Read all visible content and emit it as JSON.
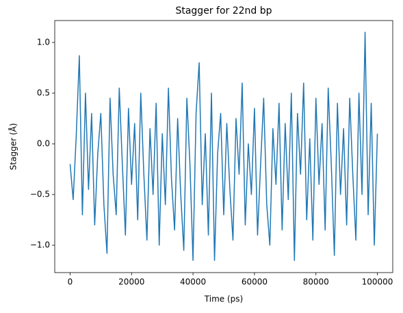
{
  "chart_data": {
    "type": "line",
    "title": "Stagger for 22nd bp",
    "xlabel": "Time (ps)",
    "ylabel": "Stagger (Å)",
    "x": [
      0,
      1000,
      2000,
      3000,
      4000,
      5000,
      6000,
      7000,
      8000,
      9000,
      10000,
      11000,
      12000,
      13000,
      14000,
      15000,
      16000,
      17000,
      18000,
      19000,
      20000,
      21000,
      22000,
      23000,
      24000,
      25000,
      26000,
      27000,
      28000,
      29000,
      30000,
      31000,
      32000,
      33000,
      34000,
      35000,
      36000,
      37000,
      38000,
      39000,
      40000,
      41000,
      42000,
      43000,
      44000,
      45000,
      46000,
      47000,
      48000,
      49000,
      50000,
      51000,
      52000,
      53000,
      54000,
      55000,
      56000,
      57000,
      58000,
      59000,
      60000,
      61000,
      62000,
      63000,
      64000,
      65000,
      66000,
      67000,
      68000,
      69000,
      70000,
      71000,
      72000,
      73000,
      74000,
      75000,
      76000,
      77000,
      78000,
      79000,
      80000,
      81000,
      82000,
      83000,
      84000,
      85000,
      86000,
      87000,
      88000,
      89000,
      90000,
      91000,
      92000,
      93000,
      94000,
      95000,
      96000,
      97000,
      98000,
      99000,
      100000
    ],
    "values": [
      -0.2,
      -0.55,
      0.08,
      0.87,
      -0.7,
      0.5,
      -0.45,
      0.3,
      -0.8,
      -0.1,
      0.3,
      -0.6,
      -1.08,
      0.45,
      -0.3,
      -0.7,
      0.55,
      -0.2,
      -0.9,
      0.35,
      -0.4,
      0.2,
      -0.75,
      0.5,
      -0.3,
      -0.95,
      0.15,
      -0.5,
      0.4,
      -1.0,
      0.1,
      -0.6,
      0.55,
      -0.35,
      -0.85,
      0.25,
      -0.5,
      -1.05,
      0.45,
      -0.2,
      -1.15,
      0.3,
      0.8,
      -0.6,
      0.1,
      -0.9,
      0.5,
      -1.15,
      -0.1,
      0.3,
      -0.7,
      0.2,
      -0.45,
      -0.95,
      0.25,
      -0.3,
      0.6,
      -0.8,
      0.0,
      -0.5,
      0.35,
      -0.9,
      -0.2,
      0.45,
      -0.6,
      -1.0,
      0.15,
      -0.4,
      0.4,
      -0.85,
      0.2,
      -0.55,
      0.5,
      -1.15,
      0.3,
      -0.3,
      0.6,
      -0.75,
      0.05,
      -0.95,
      0.45,
      -0.4,
      0.2,
      -0.85,
      0.55,
      -0.2,
      -1.1,
      0.4,
      -0.5,
      0.15,
      -0.8,
      0.45,
      -0.3,
      -0.95,
      0.5,
      -0.5,
      1.1,
      -0.7,
      0.4,
      -1.0,
      0.1
    ],
    "color": "#1f77b4",
    "xlim": [
      -5000,
      105000
    ],
    "xticks": [
      0,
      20000,
      40000,
      60000,
      80000,
      100000
    ],
    "ylim": [
      -1.27,
      1.216
    ],
    "yticks": [
      {
        "value": -1.0,
        "label": "−1.0"
      },
      {
        "value": -0.5,
        "label": "−0.5"
      },
      {
        "value": 0.0,
        "label": "0.0"
      },
      {
        "value": 0.5,
        "label": "0.5"
      },
      {
        "value": 1.0,
        "label": "1.0"
      }
    ]
  }
}
